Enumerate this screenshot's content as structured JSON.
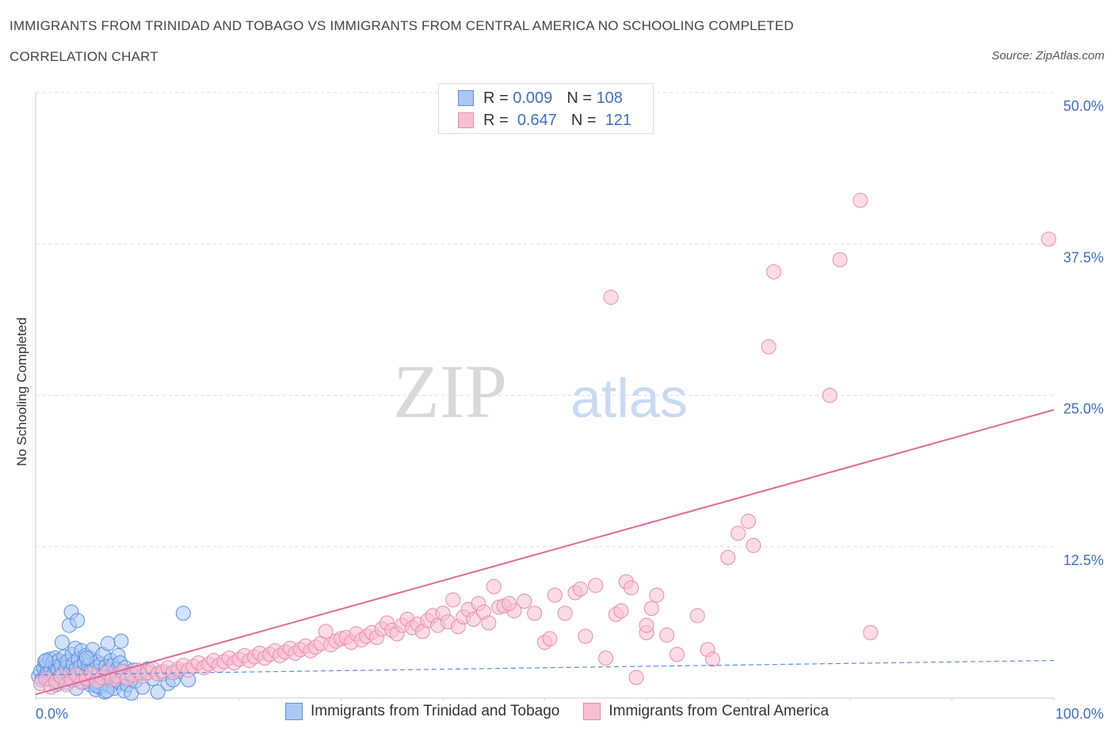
{
  "header": {
    "title_line1": "IMMIGRANTS FROM TRINIDAD AND TOBAGO VS IMMIGRANTS FROM CENTRAL AMERICA NO SCHOOLING COMPLETED",
    "title_line2": "CORRELATION CHART",
    "source": "Source: ZipAtlas.com"
  },
  "watermark": {
    "zip": "ZIP",
    "atlas": "atlas"
  },
  "legend": {
    "r_label": "R =",
    "n_label": "N =",
    "series1": {
      "r": "0.009",
      "n": "108"
    },
    "series2": {
      "r": "0.647",
      "n": "121"
    }
  },
  "colors": {
    "blue_fill": "#a9c8f4",
    "blue_stroke": "#5b8fe0",
    "blue_line": "#5b8fe0",
    "pink_fill": "#f7bfd2",
    "pink_stroke": "#e88aab",
    "pink_line": "#e06a95",
    "tick_text": "#3b6fc4",
    "grid": "#dddddd"
  },
  "chart_data": {
    "type": "scatter",
    "title": "IMMIGRANTS FROM TRINIDAD AND TOBAGO VS IMMIGRANTS FROM CENTRAL AMERICA NO SCHOOLING COMPLETED CORRELATION CHART",
    "xlabel": "",
    "ylabel": "No Schooling Completed",
    "xlim": [
      0,
      100
    ],
    "ylim": [
      0,
      50
    ],
    "x_tick_labels": [
      {
        "value": 0,
        "label": "0.0%"
      },
      {
        "value": 100,
        "label": "100.0%"
      }
    ],
    "y_tick_labels": [
      {
        "value": 12.5,
        "label": "12.5%"
      },
      {
        "value": 25,
        "label": "25.0%"
      },
      {
        "value": 37.5,
        "label": "37.5%"
      },
      {
        "value": 50,
        "label": "50.0%"
      }
    ],
    "series": [
      {
        "name": "Immigrants from Trinidad and Tobago",
        "color": "blue",
        "R": 0.009,
        "N": 108,
        "trendline": {
          "x0": 0,
          "y0": 1.9,
          "x1": 100,
          "y1": 3.1,
          "style": "dashed"
        },
        "points": [
          [
            0.3,
            1.8
          ],
          [
            0.5,
            2.2
          ],
          [
            0.6,
            1.5
          ],
          [
            0.8,
            2.5
          ],
          [
            0.9,
            3.0
          ],
          [
            1.0,
            1.9
          ],
          [
            1.1,
            2.8
          ],
          [
            1.2,
            2.1
          ],
          [
            1.3,
            1.6
          ],
          [
            1.4,
            3.2
          ],
          [
            1.5,
            2.4
          ],
          [
            1.6,
            1.7
          ],
          [
            1.7,
            2.9
          ],
          [
            1.8,
            2.0
          ],
          [
            1.9,
            3.3
          ],
          [
            2.0,
            2.6
          ],
          [
            2.1,
            1.4
          ],
          [
            2.2,
            2.3
          ],
          [
            2.3,
            3.1
          ],
          [
            2.4,
            1.8
          ],
          [
            2.5,
            2.7
          ],
          [
            2.6,
            4.6
          ],
          [
            2.7,
            2.0
          ],
          [
            2.8,
            3.4
          ],
          [
            2.9,
            1.6
          ],
          [
            3.0,
            2.5
          ],
          [
            3.1,
            3.0
          ],
          [
            3.2,
            1.9
          ],
          [
            3.3,
            6.0
          ],
          [
            3.4,
            2.2
          ],
          [
            3.5,
            7.1
          ],
          [
            3.6,
            3.6
          ],
          [
            3.7,
            2.8
          ],
          [
            3.8,
            1.5
          ],
          [
            3.9,
            4.1
          ],
          [
            4.0,
            2.4
          ],
          [
            4.1,
            6.4
          ],
          [
            4.2,
            3.2
          ],
          [
            4.3,
            1.7
          ],
          [
            4.4,
            2.6
          ],
          [
            4.5,
            3.9
          ],
          [
            4.6,
            2.1
          ],
          [
            4.7,
            1.3
          ],
          [
            4.8,
            2.9
          ],
          [
            4.9,
            3.5
          ],
          [
            5.0,
            2.0
          ],
          [
            5.1,
            1.6
          ],
          [
            5.2,
            2.7
          ],
          [
            5.3,
            3.3
          ],
          [
            5.4,
            1.1
          ],
          [
            5.5,
            2.3
          ],
          [
            5.6,
            4.0
          ],
          [
            5.7,
            1.8
          ],
          [
            5.8,
            2.5
          ],
          [
            5.9,
            0.7
          ],
          [
            6.0,
            3.0
          ],
          [
            6.1,
            1.4
          ],
          [
            6.2,
            2.2
          ],
          [
            6.3,
            0.9
          ],
          [
            6.4,
            2.8
          ],
          [
            6.5,
            1.2
          ],
          [
            6.6,
            3.6
          ],
          [
            6.7,
            2.0
          ],
          [
            6.8,
            0.5
          ],
          [
            6.9,
            2.6
          ],
          [
            7.0,
            1.7
          ],
          [
            7.1,
            4.5
          ],
          [
            7.2,
            2.3
          ],
          [
            7.3,
            1.0
          ],
          [
            7.4,
            3.1
          ],
          [
            7.5,
            1.9
          ],
          [
            7.6,
            2.7
          ],
          [
            7.7,
            0.8
          ],
          [
            7.8,
            2.1
          ],
          [
            7.9,
            1.5
          ],
          [
            8.0,
            2.4
          ],
          [
            8.1,
            3.5
          ],
          [
            8.2,
            1.3
          ],
          [
            8.3,
            2.9
          ],
          [
            8.4,
            4.7
          ],
          [
            8.5,
            1.8
          ],
          [
            8.6,
            2.2
          ],
          [
            8.7,
            0.6
          ],
          [
            8.8,
            2.5
          ],
          [
            8.9,
            1.6
          ],
          [
            9.0,
            1.1
          ],
          [
            9.2,
            2.0
          ],
          [
            9.4,
            0.4
          ],
          [
            9.6,
            2.3
          ],
          [
            9.8,
            1.4
          ],
          [
            10.2,
            2.1
          ],
          [
            10.5,
            0.9
          ],
          [
            11.0,
            2.4
          ],
          [
            11.5,
            1.6
          ],
          [
            12.0,
            0.5
          ],
          [
            12.5,
            2.0
          ],
          [
            13.0,
            1.2
          ],
          [
            13.5,
            1.5
          ],
          [
            14.0,
            2.2
          ],
          [
            14.5,
            7.0
          ],
          [
            15.0,
            1.5
          ],
          [
            1.0,
            3.1
          ],
          [
            2.0,
            1.1
          ],
          [
            3.0,
            1.3
          ],
          [
            4.0,
            0.8
          ],
          [
            5.0,
            3.3
          ],
          [
            6.0,
            1.0
          ],
          [
            7.0,
            0.6
          ]
        ]
      },
      {
        "name": "Immigrants from Central America",
        "color": "pink",
        "R": 0.647,
        "N": 121,
        "trendline": {
          "x0": 0,
          "y0": 0.3,
          "x1": 100,
          "y1": 23.8,
          "style": "solid"
        },
        "points": [
          [
            0.5,
            1.2
          ],
          [
            1.0,
            1.6
          ],
          [
            1.5,
            0.9
          ],
          [
            2.0,
            1.4
          ],
          [
            2.5,
            1.8
          ],
          [
            3.0,
            1.1
          ],
          [
            3.5,
            1.5
          ],
          [
            4.0,
            1.9
          ],
          [
            4.5,
            1.3
          ],
          [
            5.0,
            1.6
          ],
          [
            5.5,
            2.0
          ],
          [
            6.0,
            1.4
          ],
          [
            6.5,
            1.7
          ],
          [
            7.0,
            2.1
          ],
          [
            7.5,
            1.5
          ],
          [
            8.0,
            1.8
          ],
          [
            8.5,
            2.2
          ],
          [
            9.0,
            1.6
          ],
          [
            9.5,
            1.9
          ],
          [
            10.0,
            2.3
          ],
          [
            10.5,
            1.8
          ],
          [
            11.0,
            2.1
          ],
          [
            11.5,
            2.4
          ],
          [
            12.0,
            2.0
          ],
          [
            12.5,
            2.2
          ],
          [
            13.0,
            2.5
          ],
          [
            13.5,
            2.1
          ],
          [
            14.0,
            2.4
          ],
          [
            14.5,
            2.7
          ],
          [
            15.0,
            2.3
          ],
          [
            15.5,
            2.6
          ],
          [
            16.0,
            2.9
          ],
          [
            16.5,
            2.5
          ],
          [
            17.0,
            2.8
          ],
          [
            17.5,
            3.1
          ],
          [
            18.0,
            2.7
          ],
          [
            18.5,
            3.0
          ],
          [
            19.0,
            3.3
          ],
          [
            19.5,
            2.9
          ],
          [
            20.0,
            3.2
          ],
          [
            20.5,
            3.5
          ],
          [
            21.0,
            3.1
          ],
          [
            21.5,
            3.4
          ],
          [
            22.0,
            3.7
          ],
          [
            22.5,
            3.3
          ],
          [
            23.0,
            3.6
          ],
          [
            23.5,
            3.9
          ],
          [
            24.0,
            3.5
          ],
          [
            24.5,
            3.8
          ],
          [
            25.0,
            4.1
          ],
          [
            25.5,
            3.7
          ],
          [
            26.0,
            4.0
          ],
          [
            26.5,
            4.3
          ],
          [
            27.0,
            3.9
          ],
          [
            27.5,
            4.2
          ],
          [
            28.0,
            4.5
          ],
          [
            28.5,
            5.5
          ],
          [
            29.0,
            4.4
          ],
          [
            29.5,
            4.7
          ],
          [
            30.0,
            4.9
          ],
          [
            30.5,
            5.0
          ],
          [
            31.0,
            4.6
          ],
          [
            31.5,
            5.3
          ],
          [
            32.0,
            4.8
          ],
          [
            32.5,
            5.1
          ],
          [
            33.0,
            5.4
          ],
          [
            33.5,
            5.0
          ],
          [
            34.0,
            5.7
          ],
          [
            34.5,
            6.2
          ],
          [
            35.0,
            5.6
          ],
          [
            35.5,
            5.3
          ],
          [
            36.0,
            6.0
          ],
          [
            36.5,
            6.5
          ],
          [
            37.0,
            5.8
          ],
          [
            37.5,
            6.1
          ],
          [
            38.0,
            5.5
          ],
          [
            38.5,
            6.4
          ],
          [
            39.0,
            6.8
          ],
          [
            39.5,
            6.0
          ],
          [
            40.0,
            7.0
          ],
          [
            40.5,
            6.3
          ],
          [
            41.0,
            8.1
          ],
          [
            41.5,
            5.9
          ],
          [
            42.0,
            6.7
          ],
          [
            42.5,
            7.3
          ],
          [
            43.0,
            6.5
          ],
          [
            43.5,
            7.8
          ],
          [
            44.0,
            7.1
          ],
          [
            45.0,
            9.2
          ],
          [
            45.5,
            7.5
          ],
          [
            46.0,
            7.6
          ],
          [
            47.0,
            7.2
          ],
          [
            48.0,
            8.0
          ],
          [
            49.0,
            7.0
          ],
          [
            50.0,
            4.6
          ],
          [
            50.5,
            4.9
          ],
          [
            51.0,
            8.5
          ],
          [
            52.0,
            7.0
          ],
          [
            53.0,
            8.7
          ],
          [
            53.5,
            9.0
          ],
          [
            54.0,
            5.1
          ],
          [
            55.0,
            9.3
          ],
          [
            56.0,
            3.3
          ],
          [
            57.0,
            6.9
          ],
          [
            57.5,
            7.2
          ],
          [
            58.0,
            9.6
          ],
          [
            58.5,
            9.1
          ],
          [
            59.0,
            1.7
          ],
          [
            60.0,
            5.4
          ],
          [
            60.5,
            7.4
          ],
          [
            61.0,
            8.5
          ],
          [
            62.0,
            5.2
          ],
          [
            63.0,
            3.6
          ],
          [
            65.0,
            6.8
          ],
          [
            66.0,
            4.0
          ],
          [
            66.5,
            3.2
          ],
          [
            68.0,
            11.6
          ],
          [
            69.0,
            13.6
          ],
          [
            70.0,
            14.6
          ],
          [
            70.5,
            12.6
          ],
          [
            56.5,
            33.1
          ],
          [
            72.0,
            29.0
          ],
          [
            72.5,
            35.2
          ],
          [
            78.0,
            25.0
          ],
          [
            79.0,
            36.2
          ],
          [
            81.0,
            41.1
          ],
          [
            82.0,
            5.4
          ],
          [
            99.5,
            37.9
          ],
          [
            60.0,
            6.0
          ],
          [
            46.5,
            7.8
          ],
          [
            44.5,
            6.2
          ]
        ]
      }
    ]
  },
  "bottom_legend": {
    "series1_label": "Immigrants from Trinidad and Tobago",
    "series2_label": "Immigrants from Central America"
  }
}
